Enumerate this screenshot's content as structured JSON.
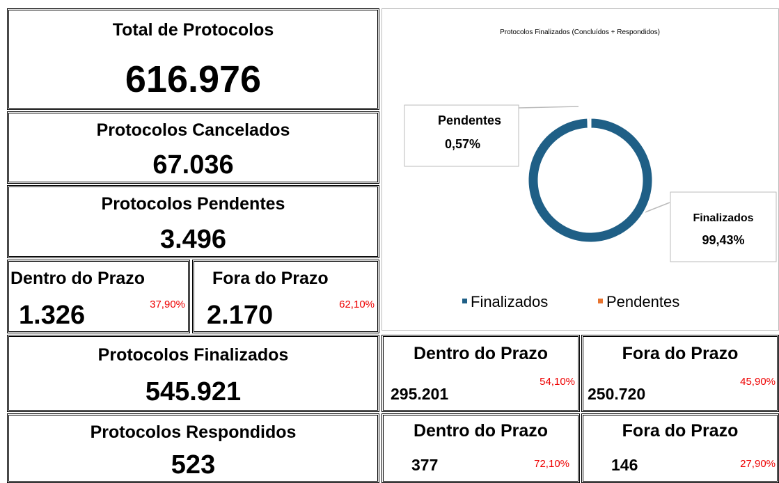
{
  "total": {
    "title": "Total de Protocolos",
    "value": "616.976"
  },
  "cancelados": {
    "title": "Protocolos Cancelados",
    "value": "67.036"
  },
  "pendentes": {
    "title": "Protocolos Pendentes",
    "value": "3.496",
    "dentro": {
      "label": "Dentro do Prazo",
      "value": "1.326",
      "pct": "37,90%"
    },
    "fora": {
      "label": "Fora do Prazo",
      "value": "2.170",
      "pct": "62,10%"
    }
  },
  "finalizados": {
    "title": "Protocolos Finalizados",
    "value": "545.921",
    "dentro": {
      "label": "Dentro do Prazo",
      "value": "295.201",
      "pct": "54,10%"
    },
    "fora": {
      "label": "Fora do Prazo",
      "value": "250.720",
      "pct": "45,90%"
    }
  },
  "respondidos": {
    "title": "Protocolos Respondidos",
    "value": "523",
    "dentro": {
      "label": "Dentro do Prazo",
      "value": "377",
      "pct": "72,10%"
    },
    "fora": {
      "label": "Fora do Prazo",
      "value": "146",
      "pct": "27,90%"
    }
  },
  "chart_data": {
    "type": "pie",
    "title": "Protocolos Finalizados (Concluídos + Respondidos)",
    "categories": [
      "Finalizados",
      "Pendentes"
    ],
    "values": [
      99.43,
      0.57
    ],
    "value_labels": [
      "99,43%",
      "0,57%"
    ],
    "colors": [
      "#1f5f86",
      "#e8742f"
    ],
    "donut": true,
    "legend": "bottom"
  }
}
